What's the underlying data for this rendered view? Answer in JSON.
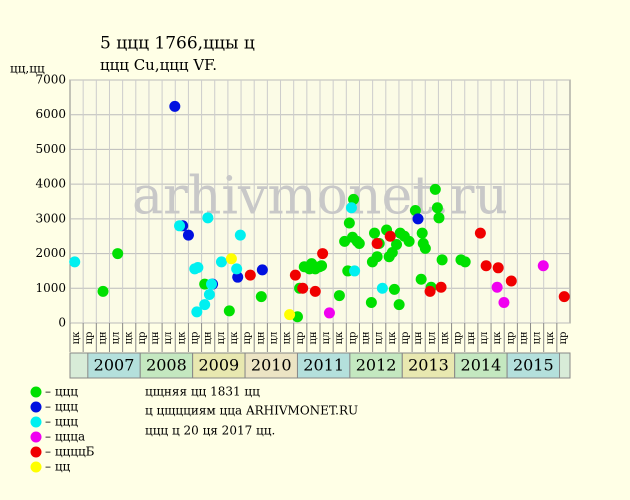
{
  "chart_data": {
    "type": "scatter",
    "title": "5 ццц 1766,ццы ц",
    "subtitle": "ццц Cu,ццц VF.",
    "y_label": "цц,цц",
    "watermark": "arhivmonet.ru",
    "notes": [
      "цщняя цц 1831 цц",
      "ц цщцциям цца ARHIVMONET.RU",
      "ццц ц 20 ця 2017 цц."
    ],
    "xlim": [
      2006.66,
      2016.2
    ],
    "ylim": [
      0,
      7000
    ],
    "yticks": [
      0,
      1000,
      2000,
      3000,
      4000,
      5000,
      6000,
      7000
    ],
    "grid": true,
    "columns": [
      "цк",
      "цр",
      "цн",
      "цл",
      "цк",
      "цр",
      "цн",
      "цл",
      "цк",
      "цр",
      "цн",
      "цл",
      "цк",
      "цр",
      "цн",
      "цл",
      "цк",
      "цр",
      "цн",
      "цл",
      "цк",
      "цр",
      "цн",
      "цл",
      "цк",
      "цр",
      "цн",
      "цл",
      "цк",
      "цр",
      "цн",
      "цл",
      "цк",
      "цр",
      "цн",
      "цл",
      "цк",
      "цр"
    ],
    "years": [
      2007,
      2008,
      2009,
      2010,
      2011,
      2012,
      2013,
      2014,
      2015
    ],
    "year_colors": [
      "#b4e0dc",
      "#c4e8c0",
      "#e8e8b0",
      "#ece4c4",
      "#b4e0dc",
      "#c4e8c0",
      "#e8e8b0",
      "#c4e8c0",
      "#b4e0dc"
    ],
    "series": [
      {
        "name": "– ццц",
        "color": "#00e000",
        "x": [
          2007.29,
          2007.57,
          2009.23,
          2009.7,
          2010.31,
          2011.0,
          2011.04,
          2011.13,
          2011.23,
          2011.27,
          2011.34,
          2011.42,
          2011.46,
          2011.8,
          2011.9,
          2011.96,
          2011.99,
          2012.05,
          2012.07,
          2012.14,
          2012.18,
          2012.41,
          2012.43,
          2012.47,
          2012.52,
          2012.56,
          2012.7,
          2012.75,
          2012.81,
          2012.85,
          2012.89,
          2012.94,
          2012.96,
          2013.04,
          2013.13,
          2013.25,
          2013.36,
          2013.38,
          2013.4,
          2013.44,
          2013.55,
          2013.63,
          2013.67,
          2013.7,
          2013.76,
          2014.12,
          2014.2
        ],
        "values": [
          910,
          2000,
          1120,
          350,
          760,
          180,
          1000,
          1620,
          1560,
          1710,
          1560,
          1620,
          1650,
          790,
          2350,
          1500,
          2880,
          2470,
          3560,
          2350,
          2290,
          590,
          1760,
          2590,
          1910,
          2290,
          2680,
          1910,
          2030,
          970,
          2260,
          530,
          2590,
          2500,
          2350,
          3240,
          1260,
          2590,
          2290,
          2150,
          1030,
          3850,
          3320,
          3030,
          1820,
          1820,
          1760
        ]
      },
      {
        "name": "– ццц",
        "color": "#0010e0",
        "x": [
          2008.66,
          2008.81,
          2008.92,
          2009.38,
          2009.86,
          2010.33,
          2013.3
        ],
        "values": [
          6240,
          2800,
          2530,
          1120,
          1320,
          1530,
          3000
        ]
      },
      {
        "name": "– ццц",
        "color": "#00f0f0",
        "x": [
          2006.75,
          2008.75,
          2009.04,
          2009.1,
          2009.08,
          2009.23,
          2009.29,
          2009.32,
          2009.36,
          2009.55,
          2009.84,
          2009.91,
          2012.03,
          2012.09,
          2012.62
        ],
        "values": [
          1760,
          2800,
          1560,
          1600,
          320,
          530,
          3030,
          820,
          1120,
          1760,
          1560,
          2530,
          3320,
          1500,
          1000
        ]
      },
      {
        "name": "– цццa",
        "color": "#f000f0",
        "x": [
          2011.61,
          2014.81,
          2014.94,
          2015.69
        ],
        "values": [
          290,
          1030,
          590,
          1650
        ]
      },
      {
        "name": "– ццццБ",
        "color": "#f00000",
        "x": [
          2010.1,
          2010.96,
          2011.1,
          2011.34,
          2011.48,
          2012.52,
          2012.77,
          2013.53,
          2013.74,
          2014.49,
          2014.6,
          2014.83,
          2015.08,
          2016.09
        ],
        "values": [
          1380,
          1380,
          1000,
          910,
          2000,
          2290,
          2500,
          910,
          1030,
          2590,
          1650,
          1590,
          1210,
          760
        ]
      },
      {
        "name": "– цц",
        "color": "#ffff00",
        "x": [
          2009.74,
          2010.85
        ],
        "values": [
          1850,
          240
        ]
      }
    ]
  }
}
